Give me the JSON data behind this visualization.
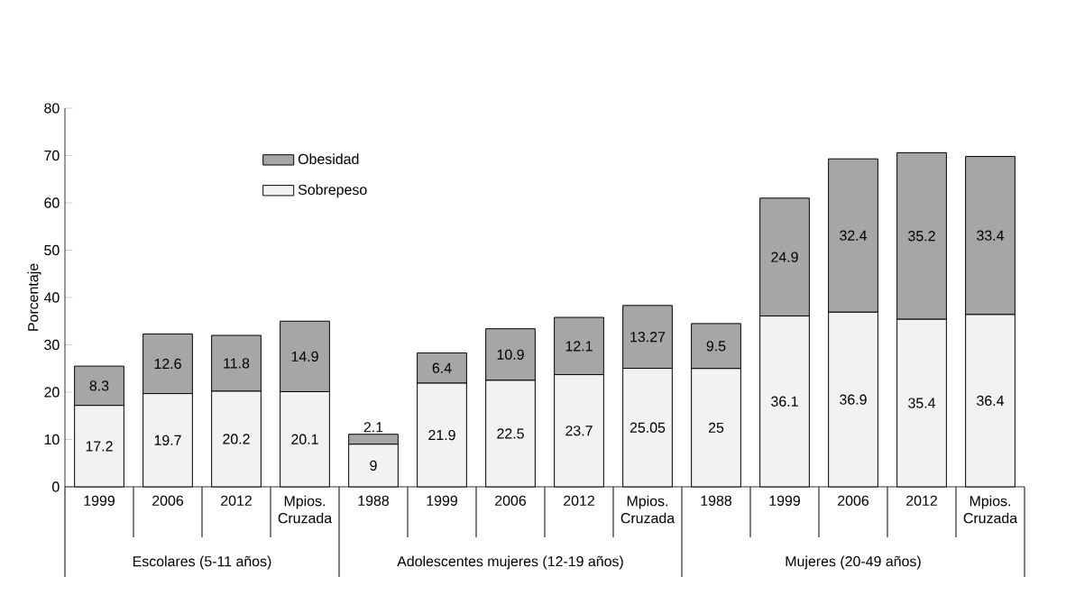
{
  "chart_data": {
    "type": "bar",
    "stacked": true,
    "ylabel": "Porcentaje",
    "categories": [
      "1999",
      "2006",
      "2012",
      "Mpios. Cruzada",
      "1988",
      "1999",
      "2006",
      "2012",
      "Mpios. Cruzada",
      "1988",
      "1999",
      "2006",
      "2012",
      "Mpios. Cruzada"
    ],
    "series": [
      {
        "name": "Sobrepeso",
        "color": "#f2f2f2",
        "values": [
          17.2,
          19.7,
          20.2,
          20.1,
          9,
          21.9,
          22.5,
          23.7,
          25.05,
          25,
          36.1,
          36.9,
          35.4,
          36.4
        ]
      },
      {
        "name": "Obesidad",
        "color": "#a6a6a6",
        "values": [
          8.3,
          12.6,
          11.8,
          14.9,
          2.1,
          6.4,
          10.9,
          12.1,
          13.27,
          9.5,
          24.9,
          32.4,
          35.2,
          33.4
        ]
      }
    ],
    "ylim": [
      0,
      80
    ],
    "yticks": [
      0,
      10,
      20,
      30,
      40,
      50,
      60,
      70,
      80
    ],
    "data_labels": true,
    "legend": "top left",
    "annotations": [
      "Escolares (5-11 años)",
      "Adolescentes mujeres (12-19 años)",
      "Mujeres (20-49 años)"
    ]
  }
}
